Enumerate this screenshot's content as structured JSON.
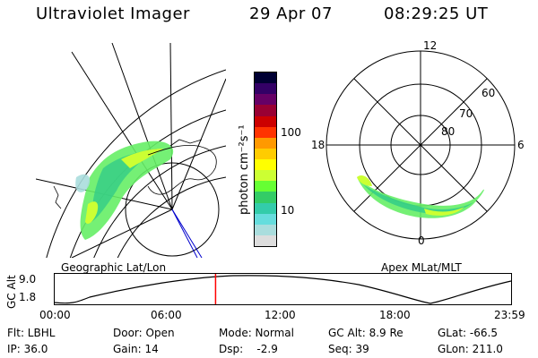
{
  "header": {
    "title": "Ultraviolet Imager",
    "date": "29 Apr 07",
    "time": "08:29:25 UT"
  },
  "left_panel": {
    "label": "Geographic Lat/Lon"
  },
  "right_panel": {
    "label": "Apex MLat/MLT",
    "lat_labels": [
      "60",
      "70",
      "80"
    ],
    "mlt_labels": [
      "12",
      "18",
      "6",
      "0"
    ]
  },
  "colorbar": {
    "unit_label": "photon cm⁻²s⁻¹",
    "tick_labels": [
      "100",
      "10"
    ],
    "colors": [
      "#000033",
      "#330066",
      "#660066",
      "#990033",
      "#cc0000",
      "#ff3300",
      "#ff9900",
      "#ffcc00",
      "#ffff00",
      "#ccff33",
      "#66ff33",
      "#33cc66",
      "#33ccaa",
      "#66dddd",
      "#aadddd",
      "#dddddd"
    ]
  },
  "altitude_plot": {
    "ylabel": "GC Alt",
    "y_ticks": [
      "9.0",
      "1.8"
    ],
    "x_ticks": [
      "00:00",
      "06:00",
      "12:00",
      "18:00",
      "23:59"
    ],
    "current_time_hours": 8.49,
    "marker_color": "#ff0000"
  },
  "status": {
    "row1": {
      "flt": "Flt: LBHL",
      "door": "Door: Open",
      "mode": "Mode: Normal",
      "gcalt": "GC Alt: 8.9 Re",
      "glat": "GLat: -66.5"
    },
    "row2": {
      "ip": "IP: 36.0",
      "gain": "Gain: 14",
      "dsp": "Dsp:    -2.9",
      "seq": "Seq: 39",
      "glon": "GLon: 211.0"
    }
  }
}
